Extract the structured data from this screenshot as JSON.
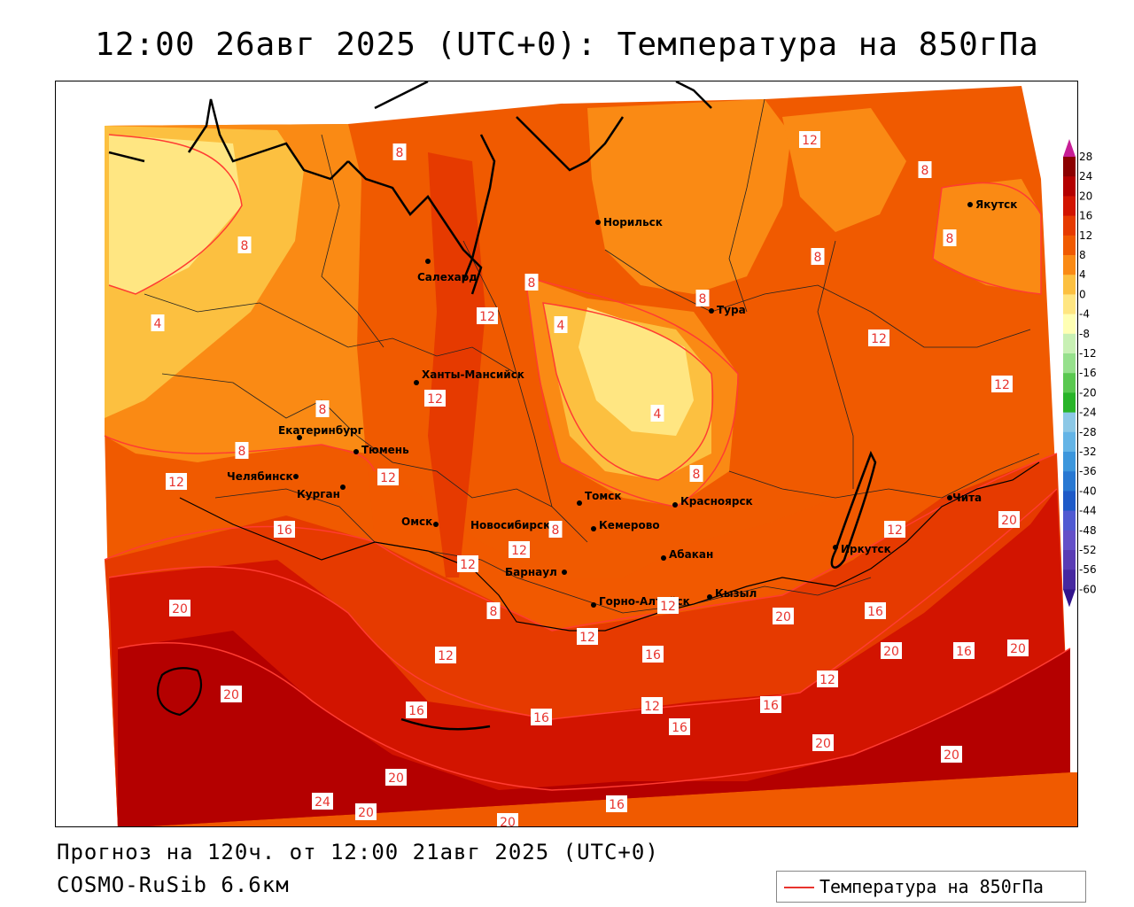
{
  "title": "12:00 26авг 2025 (UTC+0): Температура на 850гПа",
  "forecast_info": "Прогноз на 120ч. от 12:00 21авг 2025 (UTC+0)",
  "model_name": "COSMO-RuSib 6.6км",
  "legend": {
    "label": "Температура на 850гПа",
    "line_color": "#e8342e"
  },
  "colorbar": {
    "labels": [
      "28",
      "24",
      "20",
      "16",
      "12",
      "8",
      "4",
      "0",
      "-4",
      "-8",
      "-12",
      "-16",
      "-20",
      "-24",
      "-28",
      "-32",
      "-36",
      "-40",
      "-44",
      "-48",
      "-52",
      "-56",
      "-60"
    ],
    "colors": [
      "#8c0000",
      "#b40000",
      "#d21400",
      "#e63a00",
      "#f05a00",
      "#fa8a14",
      "#fcc040",
      "#ffe682",
      "#ffffb4",
      "#c8f0b4",
      "#96e08c",
      "#5ac850",
      "#28b428",
      "#8cc8e6",
      "#64b4e6",
      "#3c96dc",
      "#2878d2",
      "#1e5ac8",
      "#505ad2",
      "#6450c8",
      "#5a3cb4",
      "#4628a0",
      "#32148c"
    ]
  },
  "cities": [
    {
      "name": "Норильск"
    },
    {
      "name": "Якутск"
    },
    {
      "name": "Салехард"
    },
    {
      "name": "Тура"
    },
    {
      "name": "Ханты-Мансийск"
    },
    {
      "name": "Екатеринбург"
    },
    {
      "name": "Тюмень"
    },
    {
      "name": "Челябинск"
    },
    {
      "name": "Курган"
    },
    {
      "name": "Омск"
    },
    {
      "name": "Томск"
    },
    {
      "name": "Новосибирск"
    },
    {
      "name": "Кемерово"
    },
    {
      "name": "Красноярск"
    },
    {
      "name": "Барнаул"
    },
    {
      "name": "Абакан"
    },
    {
      "name": "Иркутск"
    },
    {
      "name": "Чита"
    },
    {
      "name": "Горно-Алтайск"
    },
    {
      "name": "Кызыл"
    }
  ],
  "isotherm_labels": [
    "8",
    "12",
    "8",
    "8",
    "8",
    "8",
    "4",
    "8",
    "4",
    "8",
    "12",
    "4",
    "12",
    "12",
    "12",
    "8",
    "8",
    "8",
    "12",
    "12",
    "16",
    "12",
    "12",
    "12",
    "8",
    "8",
    "12",
    "20",
    "12",
    "20",
    "16",
    "20",
    "16",
    "20",
    "20",
    "12",
    "16",
    "12",
    "16",
    "12",
    "16",
    "20",
    "16",
    "20",
    "16",
    "20",
    "20",
    "24",
    "20",
    "16",
    "20"
  ]
}
